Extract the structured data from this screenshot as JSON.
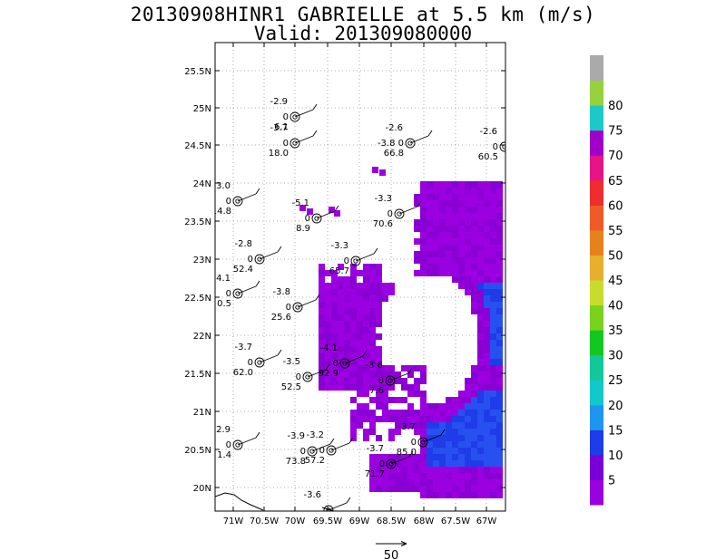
{
  "title": {
    "line1": "20130908HINR1 GABRIELLE at 5.5 km (m/s)",
    "line2": "Valid: 201309080000"
  },
  "axes": {
    "lat_ticks": [
      "25.5N",
      "25N",
      "24.5N",
      "24N",
      "23.5N",
      "23N",
      "22.5N",
      "22N",
      "21.5N",
      "21N",
      "20.5N",
      "20N"
    ],
    "lon_ticks": [
      "71W",
      "70.5W",
      "70W",
      "69.5W",
      "69W",
      "68.5W",
      "68W",
      "67.5W",
      "67W"
    ]
  },
  "reference_vector": {
    "label": "50"
  },
  "colorbar": {
    "labels": [
      "5",
      "10",
      "15",
      "20",
      "25",
      "30",
      "35",
      "40",
      "45",
      "50",
      "55",
      "60",
      "65",
      "70",
      "75",
      "80"
    ],
    "colors": [
      "#9b00e0",
      "#7a00d8",
      "#1e3ce8",
      "#1e96f0",
      "#12c8c8",
      "#12c89a",
      "#12c820",
      "#78d21e",
      "#c8dc2d",
      "#e6af2d",
      "#e6821e",
      "#ee5a28",
      "#ee2d2d",
      "#e61487",
      "#a000c8",
      "#1ec8c8",
      "#96d23c",
      "#aaaaaa"
    ]
  },
  "stations": [
    {
      "t": "-2.9",
      "m": "0",
      "b": "6.1"
    },
    {
      "t": "-3.7",
      "m": "0",
      "b": "18.0"
    },
    {
      "t": "-2.6",
      "m": "-3.8 0",
      "b": "66.8"
    },
    {
      "t": "-2.6",
      "m": "0",
      "b": "60.5"
    },
    {
      "t": "-3.0",
      "m": "0",
      "b": "14.8"
    },
    {
      "t": "-5.1",
      "m": "0",
      "b": "8.9"
    },
    {
      "t": "-3.3",
      "m": "0",
      "b": "70.6"
    },
    {
      "t": "-2.8",
      "m": "0",
      "b": "52.4"
    },
    {
      "t": "-3.3",
      "m": "0",
      "b": "65.7"
    },
    {
      "t": "-3.8",
      "m": "0",
      "b": "25.6"
    },
    {
      "t": "4.1",
      "m": "0",
      "b": "0.5"
    },
    {
      "t": "-3.7",
      "m": "0",
      "b": "62.0"
    },
    {
      "t": "-3.5",
      "m": "0",
      "b": "52.5"
    },
    {
      "t": "-4.1",
      "m": "0",
      "b": "92.9"
    },
    {
      "t": "-3.6",
      "m": "0",
      "b": "7.6"
    },
    {
      "t": "2.9",
      "m": "0",
      "b": "1.4"
    },
    {
      "t": "-3.9",
      "m": "0",
      "b": "73.8"
    },
    {
      "t": "-3.2",
      "m": "0",
      "b": "57.2"
    },
    {
      "t": "-3.7",
      "m": "0",
      "b": "85.0"
    },
    {
      "t": "-3.7",
      "m": "0",
      "b": "71.7"
    },
    {
      "t": "-3.6",
      "m": "",
      "b": ""
    }
  ]
}
